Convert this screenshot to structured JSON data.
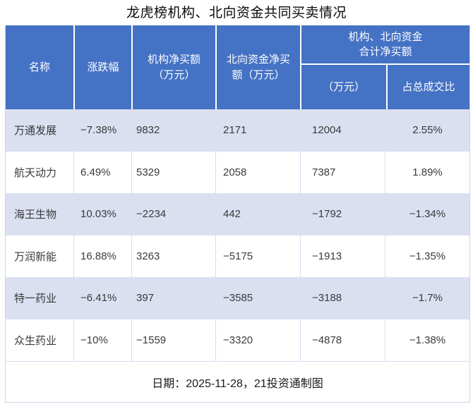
{
  "title": "龙虎榜机构、北向资金共同买卖情况",
  "footer_note": "日期：2025-11-28，21投资通制图",
  "colors": {
    "header_bg": "#4472C4",
    "header_text": "#FFFFFF",
    "row_alt_bg": "#DBE0F1",
    "row_bg": "#FFFFFF",
    "grid_line": "#D6DCEE",
    "body_text": "#3A3A3A"
  },
  "table": {
    "headers": {
      "name": "名称",
      "change": "涨跌幅",
      "inst_net": "机构净买额\n（万元）",
      "north_net": "北向资金净买\n额（万元）",
      "combined_group": "机构、北向资金\n合计净买额",
      "combined_amount": "（万元）",
      "combined_pct": "占总成交比"
    },
    "rows": [
      {
        "name": "万通发展",
        "change": "−7.38%",
        "inst": "9832",
        "north": "2171",
        "total": "12004",
        "pct": "2.55%"
      },
      {
        "name": "航天动力",
        "change": "6.49%",
        "inst": "5329",
        "north": "2058",
        "total": "7387",
        "pct": "1.89%"
      },
      {
        "name": "海王生物",
        "change": "10.03%",
        "inst": "−2234",
        "north": "442",
        "total": "−1792",
        "pct": "−1.34%"
      },
      {
        "name": "万润新能",
        "change": "16.88%",
        "inst": "3263",
        "north": "−5175",
        "total": "−1913",
        "pct": "−1.35%"
      },
      {
        "name": "特一药业",
        "change": "−6.41%",
        "inst": "397",
        "north": "−3585",
        "total": "−3188",
        "pct": "−1.7%"
      },
      {
        "name": "众生药业",
        "change": "−10%",
        "inst": "−1559",
        "north": "−3320",
        "total": "−4878",
        "pct": "−1.38%"
      }
    ]
  },
  "chart_data": {
    "type": "table",
    "title": "龙虎榜机构、北向资金共同买卖情况",
    "columns": [
      "名称",
      "涨跌幅",
      "机构净买额（万元）",
      "北向资金净买额（万元）",
      "机构、北向资金合计净买额（万元）",
      "机构、北向资金合计净买额占总成交比"
    ],
    "rows": [
      [
        "万通发展",
        -7.38,
        9832,
        2171,
        12004,
        2.55
      ],
      [
        "航天动力",
        6.49,
        5329,
        2058,
        7387,
        1.89
      ],
      [
        "海王生物",
        10.03,
        -2234,
        442,
        -1792,
        -1.34
      ],
      [
        "万润新能",
        16.88,
        3263,
        -5175,
        -1913,
        -1.35
      ],
      [
        "特一药业",
        -6.41,
        397,
        -3585,
        -3188,
        -1.7
      ],
      [
        "众生药业",
        -10,
        -1559,
        -3320,
        -4878,
        -1.38
      ]
    ],
    "units": {
      "change": "%",
      "amounts": "万元",
      "ratio": "%"
    },
    "date": "2025-11-28",
    "source": "21投资通"
  }
}
